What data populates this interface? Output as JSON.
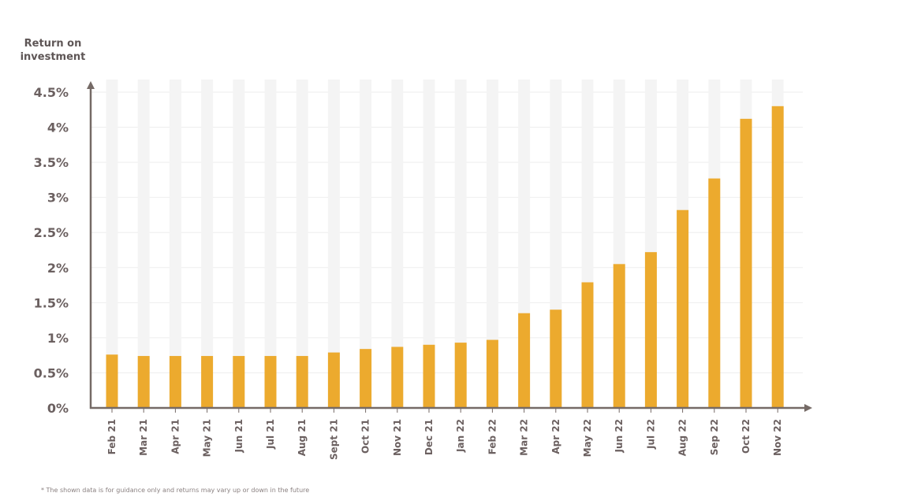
{
  "chart_data": {
    "type": "bar",
    "ylabel": "Return on investment",
    "xlabel": "",
    "title": "",
    "categories": [
      "Feb 21",
      "Mar 21",
      "Apr 21",
      "May 21",
      "Jun 21",
      "Jul 21",
      "Aug 21",
      "Sept 21",
      "Oct 21",
      "Nov 21",
      "Dec 21",
      "Jan 22",
      "Feb 22",
      "Mar 22",
      "Apr 22",
      "May 22",
      "Jun 22",
      "Jul 22",
      "Aug 22",
      "Sep 22",
      "Oct 22",
      "Nov 22"
    ],
    "values": [
      0.76,
      0.74,
      0.74,
      0.74,
      0.74,
      0.74,
      0.74,
      0.79,
      0.84,
      0.87,
      0.9,
      0.93,
      0.97,
      1.35,
      1.4,
      1.79,
      2.05,
      2.22,
      2.82,
      3.27,
      4.12,
      4.3
    ],
    "ylim": [
      0,
      4.5
    ],
    "yticks": [
      "0%",
      "0.5%",
      "1%",
      "1.5%",
      "2%",
      "2.5%",
      "3%",
      "3.5%",
      "4%",
      "4.5%"
    ],
    "grid": true,
    "colors": {
      "bar": "#ecaa2e",
      "background_bar": "#f4f4f4",
      "axis": "#756a66",
      "gridline": "#eeeeee"
    }
  },
  "footnote": "* The shown data is for guidance only and returns may vary up or down in the future"
}
